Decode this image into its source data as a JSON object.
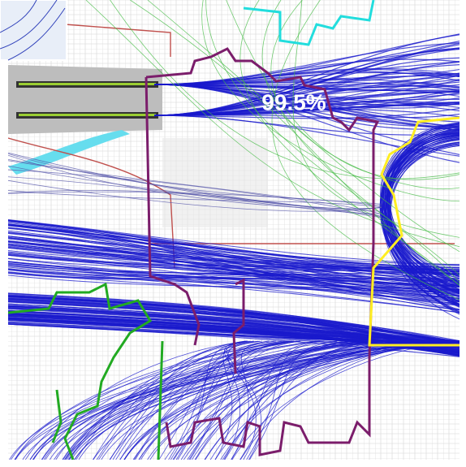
{
  "map": {
    "label": "99.5%"
  }
}
